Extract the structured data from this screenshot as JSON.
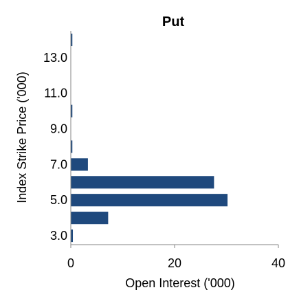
{
  "chart_data": {
    "type": "bar",
    "orientation": "horizontal",
    "title": "Put",
    "xlabel": "Open Interest ('000)",
    "ylabel": "Index Strike Price ('000)",
    "categories": [
      3.0,
      4.0,
      5.0,
      6.0,
      7.0,
      8.0,
      9.0,
      10.0,
      11.0,
      12.0,
      13.0,
      14.0
    ],
    "values": [
      0.4,
      7.2,
      30.2,
      27.6,
      3.3,
      0.3,
      0.0,
      0.3,
      0.0,
      0.0,
      0.0,
      0.3
    ],
    "y_tick_labels": [
      "3.0",
      "5.0",
      "7.0",
      "9.0",
      "11.0",
      "13.0"
    ],
    "x_tick_labels": [
      "0",
      "20",
      "40"
    ],
    "xlim": [
      0,
      40
    ],
    "ylim": [
      2.5,
      14.5
    ],
    "grid": false,
    "legend": "none",
    "bar_color": "#1F497D"
  }
}
